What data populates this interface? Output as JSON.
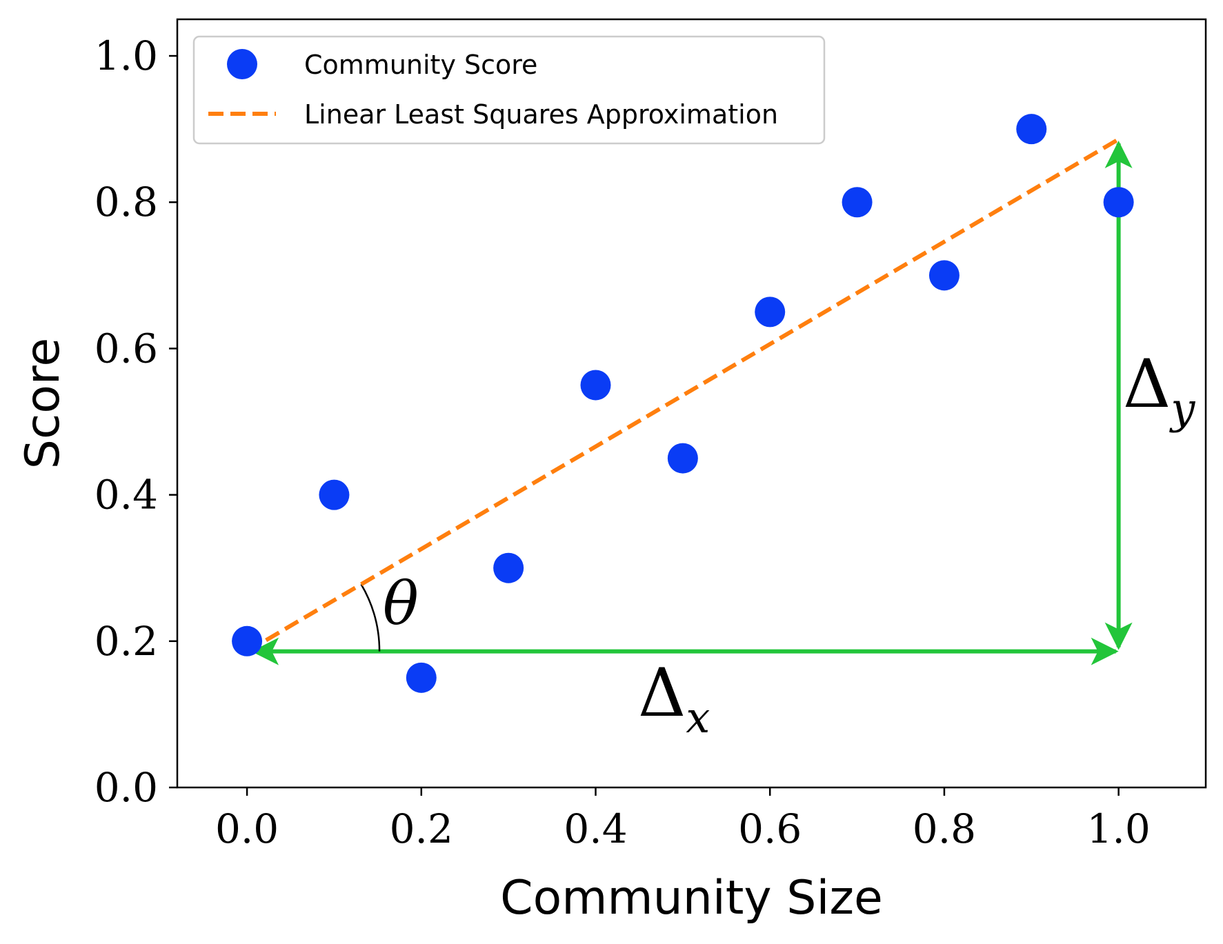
{
  "chart_data": {
    "type": "scatter",
    "xlabel": "Community Size",
    "ylabel": "Score",
    "xlim": [
      -0.08,
      1.1
    ],
    "ylim": [
      0.0,
      1.05
    ],
    "x_ticks": [
      "0.0",
      "0.2",
      "0.4",
      "0.6",
      "0.8",
      "1.0"
    ],
    "y_ticks": [
      "0.0",
      "0.2",
      "0.4",
      "0.6",
      "0.8",
      "1.0"
    ],
    "grid": false,
    "legend_position": "upper-left",
    "series": [
      {
        "name": "Community Score",
        "kind": "scatter",
        "color": "#0a3cf5",
        "x": [
          0.0,
          0.1,
          0.2,
          0.3,
          0.4,
          0.5,
          0.6,
          0.7,
          0.8,
          0.9,
          1.0
        ],
        "y": [
          0.2,
          0.4,
          0.15,
          0.3,
          0.55,
          0.45,
          0.65,
          0.8,
          0.7,
          0.9,
          0.8
        ]
      },
      {
        "name": "Linear Least Squares Approximation",
        "kind": "dashed-line",
        "color": "#ff7f0e",
        "x": [
          0.0,
          1.0
        ],
        "y": [
          0.186,
          0.886
        ]
      }
    ],
    "annotations": {
      "theta": {
        "symbol": "θ"
      },
      "delta_x": {
        "symbol": "Δ",
        "subscript": "x",
        "color": "#22c53a",
        "from": [
          0.0,
          0.186
        ],
        "to": [
          1.0,
          0.186
        ]
      },
      "delta_y": {
        "symbol": "Δ",
        "subscript": "y",
        "color": "#22c53a",
        "from": [
          1.0,
          0.186
        ],
        "to": [
          1.0,
          0.886
        ]
      }
    }
  }
}
